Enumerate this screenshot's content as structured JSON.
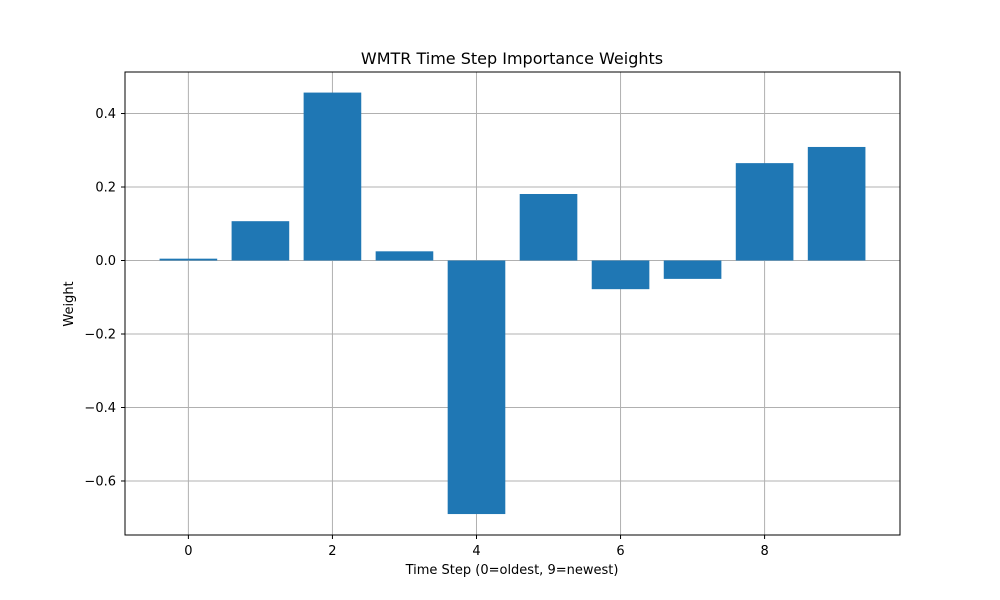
{
  "chart_data": {
    "type": "bar",
    "title": "WMTR Time Step Importance Weights",
    "xlabel": "Time Step (0=oldest, 9=newest)",
    "ylabel": "Weight",
    "x": [
      0,
      1,
      2,
      3,
      4,
      5,
      6,
      7,
      8,
      9
    ],
    "values": [
      0.005,
      0.107,
      0.457,
      0.025,
      -0.69,
      0.181,
      -0.078,
      -0.05,
      0.265,
      0.309
    ],
    "xlim": [
      -0.88,
      9.88
    ],
    "ylim": [
      -0.747,
      0.513
    ],
    "xticks": [
      0,
      2,
      4,
      6,
      8
    ],
    "yticks": [
      -0.6,
      -0.4,
      -0.2,
      0.0,
      0.2,
      0.4
    ],
    "xtick_labels": [
      "0",
      "2",
      "4",
      "6",
      "8"
    ],
    "ytick_labels": [
      "−0.6",
      "−0.4",
      "−0.2",
      "0.0",
      "0.2",
      "0.4"
    ],
    "grid": true,
    "bar_color": "#1f77b4"
  }
}
